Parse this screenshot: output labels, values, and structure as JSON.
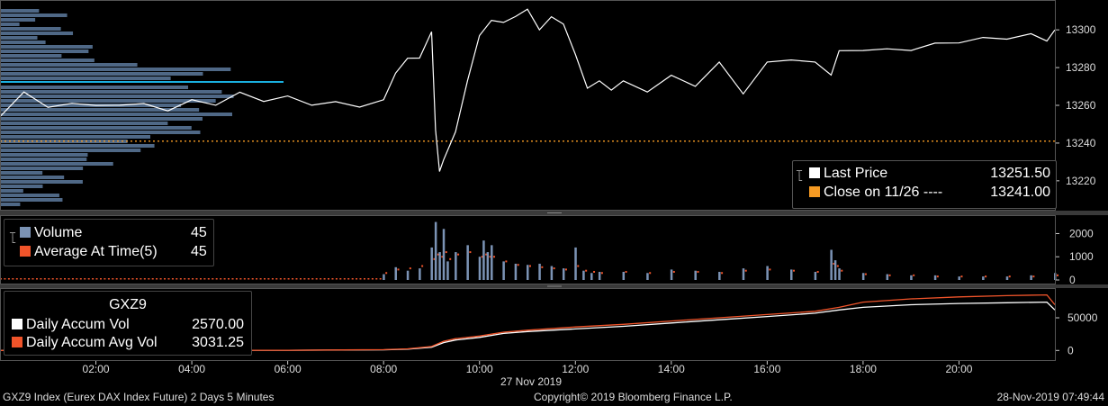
{
  "chart_data": [
    {
      "type": "line",
      "panel": "price",
      "ylim": [
        13208,
        13312
      ],
      "yticks": [
        13220,
        13240,
        13260,
        13280,
        13300
      ],
      "grid": false,
      "reference_line": {
        "name": "Close on 11/26",
        "value": 13241.0
      },
      "last_price": 13251.5,
      "x": [
        "00:00",
        "00:30",
        "01:00",
        "01:30",
        "02:00",
        "02:30",
        "03:00",
        "03:30",
        "04:00",
        "04:30",
        "05:00",
        "05:30",
        "06:00",
        "06:30",
        "07:00",
        "07:30",
        "08:00",
        "08:15",
        "08:30",
        "08:45",
        "09:00",
        "09:05",
        "09:10",
        "09:15",
        "09:30",
        "09:45",
        "10:00",
        "10:15",
        "10:30",
        "10:45",
        "11:00",
        "11:15",
        "11:30",
        "11:45",
        "12:00",
        "12:15",
        "12:30",
        "12:45",
        "13:00",
        "13:30",
        "14:00",
        "14:30",
        "15:00",
        "15:30",
        "16:00",
        "16:30",
        "17:00",
        "17:20",
        "17:30",
        "18:00",
        "18:30",
        "19:00",
        "19:30",
        "20:00",
        "20:30",
        "21:00",
        "21:30",
        "21:50",
        "22:00"
      ],
      "y": [
        13254,
        13268,
        13258,
        13262,
        13259,
        13261,
        13260,
        13258,
        13262,
        13261,
        13266,
        13263,
        13264,
        13261,
        13261,
        13260,
        13262,
        13278,
        13284,
        13286,
        13298,
        13248,
        13224,
        13232,
        13245,
        13274,
        13296,
        13306,
        13303,
        13308,
        13310,
        13301,
        13306,
        13304,
        13286,
        13270,
        13272,
        13269,
        13272,
        13268,
        13275,
        13271,
        13282,
        13267,
        13282,
        13285,
        13282,
        13277,
        13288,
        13290,
        13289,
        13290,
        13292,
        13294,
        13295,
        13296,
        13297,
        13295,
        13300
      ],
      "legend": [
        {
          "label": "Last Price",
          "value": "13251.50",
          "color": "#ffffff"
        },
        {
          "label": "Close on 11/26 ----",
          "value": "13241.00",
          "color": "#f59a23"
        }
      ],
      "volume_profile_color": "#5d7a9e",
      "volume_profile_peak_color": "#1ab0e0"
    },
    {
      "type": "bar",
      "panel": "volume",
      "ylim": [
        0,
        2600
      ],
      "yticks": [
        0,
        1000,
        2000
      ],
      "x": [
        "08:00",
        "08:15",
        "08:30",
        "08:45",
        "09:00",
        "09:05",
        "09:10",
        "09:15",
        "09:20",
        "09:30",
        "09:45",
        "10:00",
        "10:05",
        "10:10",
        "10:15",
        "10:30",
        "10:45",
        "11:00",
        "11:15",
        "11:30",
        "11:45",
        "12:00",
        "12:10",
        "12:20",
        "12:30",
        "13:00",
        "13:30",
        "14:00",
        "14:30",
        "15:00",
        "15:30",
        "16:00",
        "16:30",
        "17:00",
        "17:20",
        "17:25",
        "17:30",
        "18:00",
        "18:30",
        "19:00",
        "19:30",
        "20:00",
        "20:30",
        "21:00",
        "21:30",
        "22:00"
      ],
      "series": [
        {
          "name": "Volume",
          "color": "#7b93b5",
          "values": [
            250,
            550,
            400,
            500,
            1400,
            2500,
            1200,
            2200,
            800,
            1200,
            1500,
            1000,
            1700,
            1200,
            1500,
            800,
            700,
            650,
            700,
            600,
            500,
            1400,
            400,
            300,
            350,
            350,
            300,
            450,
            400,
            350,
            500,
            600,
            450,
            350,
            1300,
            850,
            500,
            300,
            250,
            200,
            200,
            150,
            150,
            150,
            200,
            300
          ]
        },
        {
          "name": "Average At Time(5)",
          "color": "#f0542a",
          "values": [
            300,
            450,
            500,
            600,
            900,
            1100,
            1000,
            1200,
            900,
            1100,
            1200,
            1000,
            1100,
            1000,
            1000,
            800,
            650,
            600,
            550,
            500,
            450,
            600,
            400,
            350,
            300,
            350,
            300,
            350,
            350,
            300,
            400,
            450,
            400,
            350,
            700,
            600,
            400,
            250,
            200,
            200,
            150,
            150,
            150,
            150,
            150,
            200
          ]
        }
      ],
      "legend": [
        {
          "label": "Volume",
          "value": "45",
          "color": "#7b93b5"
        },
        {
          "label": "Average At Time(5)",
          "value": "45",
          "color": "#f0542a"
        }
      ]
    },
    {
      "type": "line",
      "panel": "accumulated volume",
      "ylim": [
        -12000,
        90000
      ],
      "yticks": [
        0,
        50000
      ],
      "x": [
        "00:00",
        "06:00",
        "08:00",
        "08:30",
        "09:00",
        "09:15",
        "09:30",
        "10:00",
        "10:30",
        "11:00",
        "12:00",
        "13:00",
        "14:00",
        "15:00",
        "16:00",
        "17:00",
        "17:30",
        "18:00",
        "19:00",
        "20:00",
        "21:00",
        "21:50",
        "22:00"
      ],
      "series": [
        {
          "name": "Daily Accum Vol",
          "color": "#ffffff",
          "values": [
            0,
            200,
            1000,
            2000,
            5000,
            12000,
            16000,
            20000,
            26000,
            29000,
            33000,
            37000,
            42000,
            47000,
            52000,
            57000,
            62000,
            66000,
            70000,
            72000,
            73000,
            74000,
            62000
          ]
        },
        {
          "name": "Daily Accum Avg Vol",
          "color": "#f0542a",
          "values": [
            0,
            300,
            1200,
            2500,
            6000,
            14000,
            18000,
            22000,
            28000,
            31000,
            36000,
            40000,
            45000,
            50000,
            55000,
            60000,
            66000,
            74000,
            79000,
            82000,
            84000,
            85000,
            70000
          ]
        }
      ],
      "title": "GXZ9",
      "legend": [
        {
          "label": "Daily Accum Vol",
          "value": "2570.00",
          "color": "#ffffff"
        },
        {
          "label": "Daily Accum Avg Vol",
          "value": "3031.25",
          "color": "#f0542a"
        }
      ]
    }
  ],
  "x_axis": {
    "ticks": [
      "02:00",
      "04:00",
      "06:00",
      "08:00",
      "10:00",
      "12:00",
      "14:00",
      "16:00",
      "18:00",
      "20:00"
    ],
    "date_label": "27 Nov 2019"
  },
  "footer": {
    "left": "GXZ9 Index (Eurex DAX Index Future) 2 Days 5 Minutes",
    "center": "Copyright© 2019 Bloomberg Finance L.P.",
    "right": "28-Nov-2019 07:49:44"
  }
}
